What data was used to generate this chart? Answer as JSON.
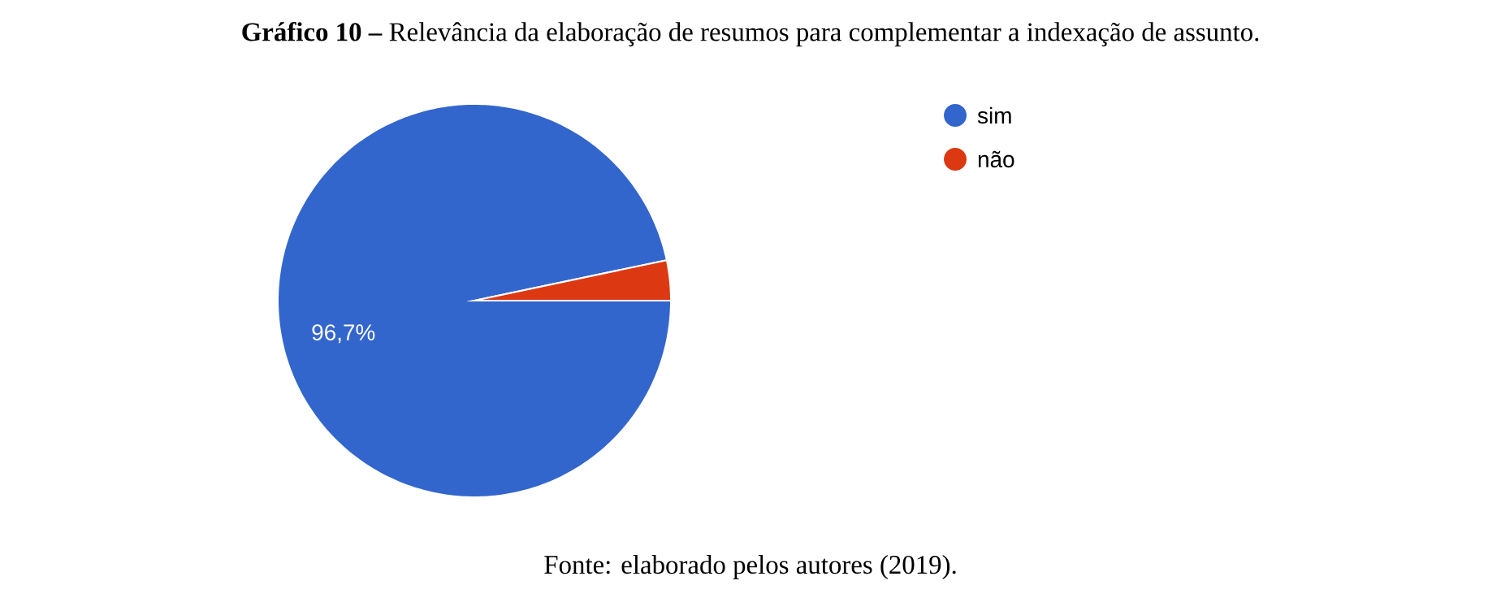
{
  "chart_data": {
    "type": "pie",
    "title": "**Gráfico 10 –** Relevância da elaboração de resumos para complementar a indexação de assunto.",
    "categories": [
      "sim",
      "não"
    ],
    "values": [
      96.7,
      3.3
    ],
    "colors": [
      "#3366cc",
      "#dc3912"
    ],
    "value_labels": [
      "96,7%",
      null
    ],
    "legend": "top right",
    "annotations": [
      "Fonte: elaborado pelos autores (2019)."
    ]
  }
}
